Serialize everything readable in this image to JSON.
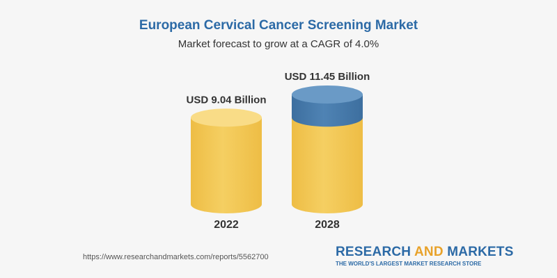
{
  "header": {
    "title": "European Cervical Cancer Screening Market",
    "subtitle": "Market forecast to grow at a CAGR of 4.0%"
  },
  "footer": {
    "url": "https://www.researchandmarkets.com/reports/5562700",
    "brand_part1": "RESEARCH ",
    "brand_part2": "AND",
    "brand_part3": " MARKETS",
    "brand_tagline": "THE WORLD'S LARGEST MARKET RESEARCH STORE"
  },
  "colors": {
    "title": "#2c6aa6",
    "bar_body": "#f5cf62",
    "bar_top": "#f9dc87",
    "growth_segment": "#4f83b4",
    "growth_top": "#6a9ac6",
    "brand_accent": "#e8a22a"
  },
  "chart_data": {
    "type": "bar",
    "title": "European Cervical Cancer Screening Market",
    "subtitle": "Market forecast to grow at a CAGR of 4.0%",
    "categories": [
      "2022",
      "2028"
    ],
    "values": [
      9.04,
      11.45
    ],
    "data_labels": [
      "USD 9.04 Billion",
      "USD 11.45 Billion"
    ],
    "unit": "USD Billion",
    "style": "cylinder",
    "growth_highlight": {
      "from": 9.04,
      "to": 11.45
    },
    "ylim": [
      0,
      11.45
    ],
    "grid": false,
    "legend": "none"
  }
}
